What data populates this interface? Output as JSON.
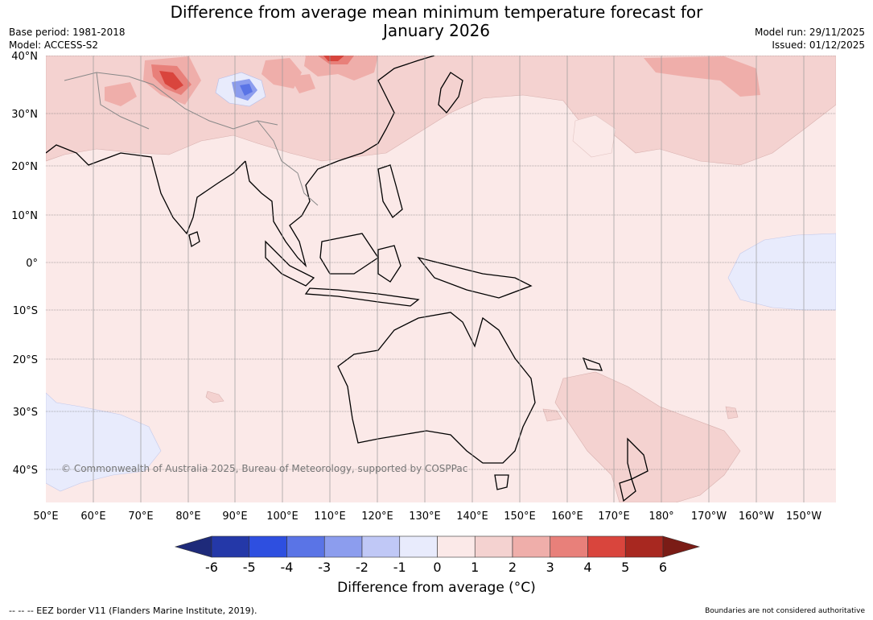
{
  "title_line1": "Difference from average mean minimum temperature forecast for",
  "title_line2": "January 2026",
  "base_period": "Base period: 1981-2018",
  "model": "Model: ACCESS-S2",
  "model_run": "Model run: 29/11/2025",
  "issued": "Issued: 01/12/2025",
  "copyright": "© Commonwealth of Australia 2025, Bureau of Meteorology, supported by COSPPac",
  "lat_labels": [
    "40°N",
    "30°N",
    "20°N",
    "10°N",
    "0°",
    "10°S",
    "20°S",
    "30°S",
    "40°S"
  ],
  "lon_labels": [
    "50°E",
    "60°E",
    "70°E",
    "80°E",
    "90°E",
    "100°E",
    "110°E",
    "120°E",
    "130°E",
    "140°E",
    "150°E",
    "160°E",
    "170°E",
    "180°",
    "170°W",
    "160°W",
    "150°W"
  ],
  "colorbar": {
    "ticks": [
      "-6",
      "-5",
      "-4",
      "-3",
      "-2",
      "-1",
      "0",
      "1",
      "2",
      "3",
      "4",
      "5",
      "6"
    ],
    "colors": [
      "#1e2a7a",
      "#2438a8",
      "#2e4fe0",
      "#5a74e6",
      "#8c9dee",
      "#c0c8f6",
      "#e8ebfc",
      "#fbe9e8",
      "#f4d2d0",
      "#efaeaa",
      "#e8807a",
      "#d9453d",
      "#a82820",
      "#7a1c16"
    ],
    "title": "Difference from average (°C)"
  },
  "footer_left": "--  --  -- EEZ border V11 (Flanders Marine Institute, 2019).",
  "footer_right": "Boundaries are not considered authoritative"
}
